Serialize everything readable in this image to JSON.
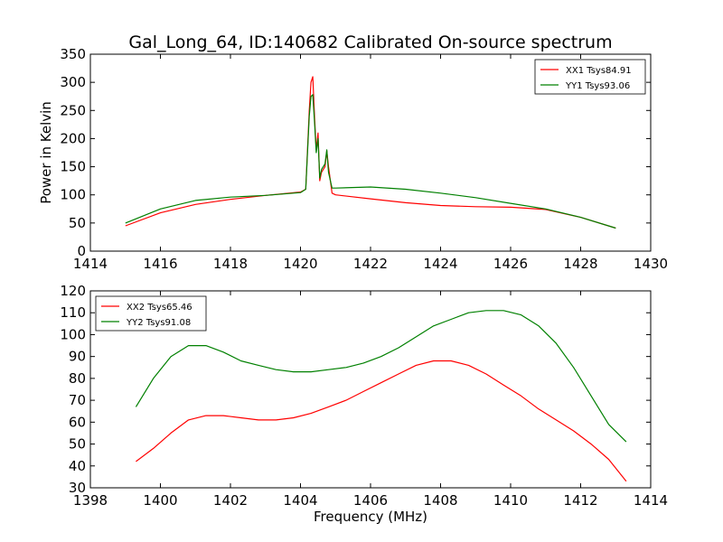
{
  "title": "Gal_Long_64, ID:140682 Calibrated On-source spectrum",
  "chart_data": [
    {
      "type": "line",
      "xlabel": "",
      "ylabel": "Power in Kelvin",
      "xlim": [
        1414,
        1430
      ],
      "ylim": [
        0,
        350
      ],
      "xticks": [
        1414,
        1416,
        1418,
        1420,
        1422,
        1424,
        1426,
        1428,
        1430
      ],
      "yticks": [
        0,
        50,
        100,
        150,
        200,
        250,
        300,
        350
      ],
      "legend": "top-right",
      "series": [
        {
          "name": "XX1 Tsys84.91",
          "color": "#ff0000",
          "x": [
            1415,
            1416,
            1417,
            1418,
            1419,
            1420,
            1420.15,
            1420.25,
            1420.3,
            1420.35,
            1420.4,
            1420.45,
            1420.5,
            1420.55,
            1420.6,
            1420.7,
            1420.75,
            1420.8,
            1420.9,
            1421,
            1422,
            1423,
            1424,
            1425,
            1426,
            1427,
            1428,
            1429
          ],
          "values": [
            45,
            68,
            83,
            92,
            99,
            105,
            110,
            250,
            300,
            310,
            240,
            180,
            210,
            125,
            140,
            150,
            178,
            150,
            103,
            100,
            93,
            86,
            81,
            79,
            78,
            74,
            60,
            41
          ]
        },
        {
          "name": "YY1 Tsys93.06",
          "color": "#008000",
          "x": [
            1415,
            1416,
            1417,
            1418,
            1419,
            1420,
            1420.15,
            1420.25,
            1420.3,
            1420.35,
            1420.4,
            1420.45,
            1420.5,
            1420.55,
            1420.6,
            1420.7,
            1420.75,
            1420.8,
            1420.9,
            1421,
            1422,
            1423,
            1424,
            1425,
            1426,
            1427,
            1428,
            1429
          ],
          "values": [
            50,
            75,
            90,
            96,
            99,
            104,
            110,
            240,
            275,
            278,
            230,
            175,
            200,
            130,
            145,
            155,
            180,
            140,
            112,
            112,
            114,
            110,
            103,
            95,
            85,
            75,
            60,
            41
          ]
        }
      ]
    },
    {
      "type": "line",
      "xlabel": "Frequency (MHz)",
      "ylabel": "",
      "xlim": [
        1398,
        1414
      ],
      "ylim": [
        30,
        120
      ],
      "xticks": [
        1398,
        1400,
        1402,
        1404,
        1406,
        1408,
        1410,
        1412,
        1414
      ],
      "yticks": [
        30,
        40,
        50,
        60,
        70,
        80,
        90,
        100,
        110,
        120
      ],
      "legend": "top-left",
      "series": [
        {
          "name": "XX2 Tsys65.46",
          "color": "#ff0000",
          "x": [
            1399.3,
            1399.8,
            1400.3,
            1400.8,
            1401.3,
            1401.8,
            1402.3,
            1402.8,
            1403.3,
            1403.8,
            1404.3,
            1404.8,
            1405.3,
            1405.8,
            1406.3,
            1406.8,
            1407.3,
            1407.8,
            1408.3,
            1408.8,
            1409.3,
            1409.8,
            1410.3,
            1410.8,
            1411.3,
            1411.8,
            1412.3,
            1412.8,
            1413.3
          ],
          "values": [
            42,
            48,
            55,
            61,
            63,
            63,
            62,
            61,
            61,
            62,
            64,
            67,
            70,
            74,
            78,
            82,
            86,
            88,
            88,
            86,
            82,
            77,
            72,
            66,
            61,
            56,
            50,
            43,
            33
          ]
        },
        {
          "name": "YY2 Tsys91.08",
          "color": "#008000",
          "x": [
            1399.3,
            1399.8,
            1400.3,
            1400.8,
            1401.3,
            1401.8,
            1402.3,
            1402.8,
            1403.3,
            1403.8,
            1404.3,
            1404.8,
            1405.3,
            1405.8,
            1406.3,
            1406.8,
            1407.3,
            1407.8,
            1408.3,
            1408.8,
            1409.3,
            1409.8,
            1410.3,
            1410.8,
            1411.3,
            1411.8,
            1412.3,
            1412.8,
            1413.3
          ],
          "values": [
            67,
            80,
            90,
            95,
            95,
            92,
            88,
            86,
            84,
            83,
            83,
            84,
            85,
            87,
            90,
            94,
            99,
            104,
            107,
            110,
            111,
            111,
            109,
            104,
            96,
            85,
            72,
            59,
            51
          ]
        }
      ]
    }
  ]
}
